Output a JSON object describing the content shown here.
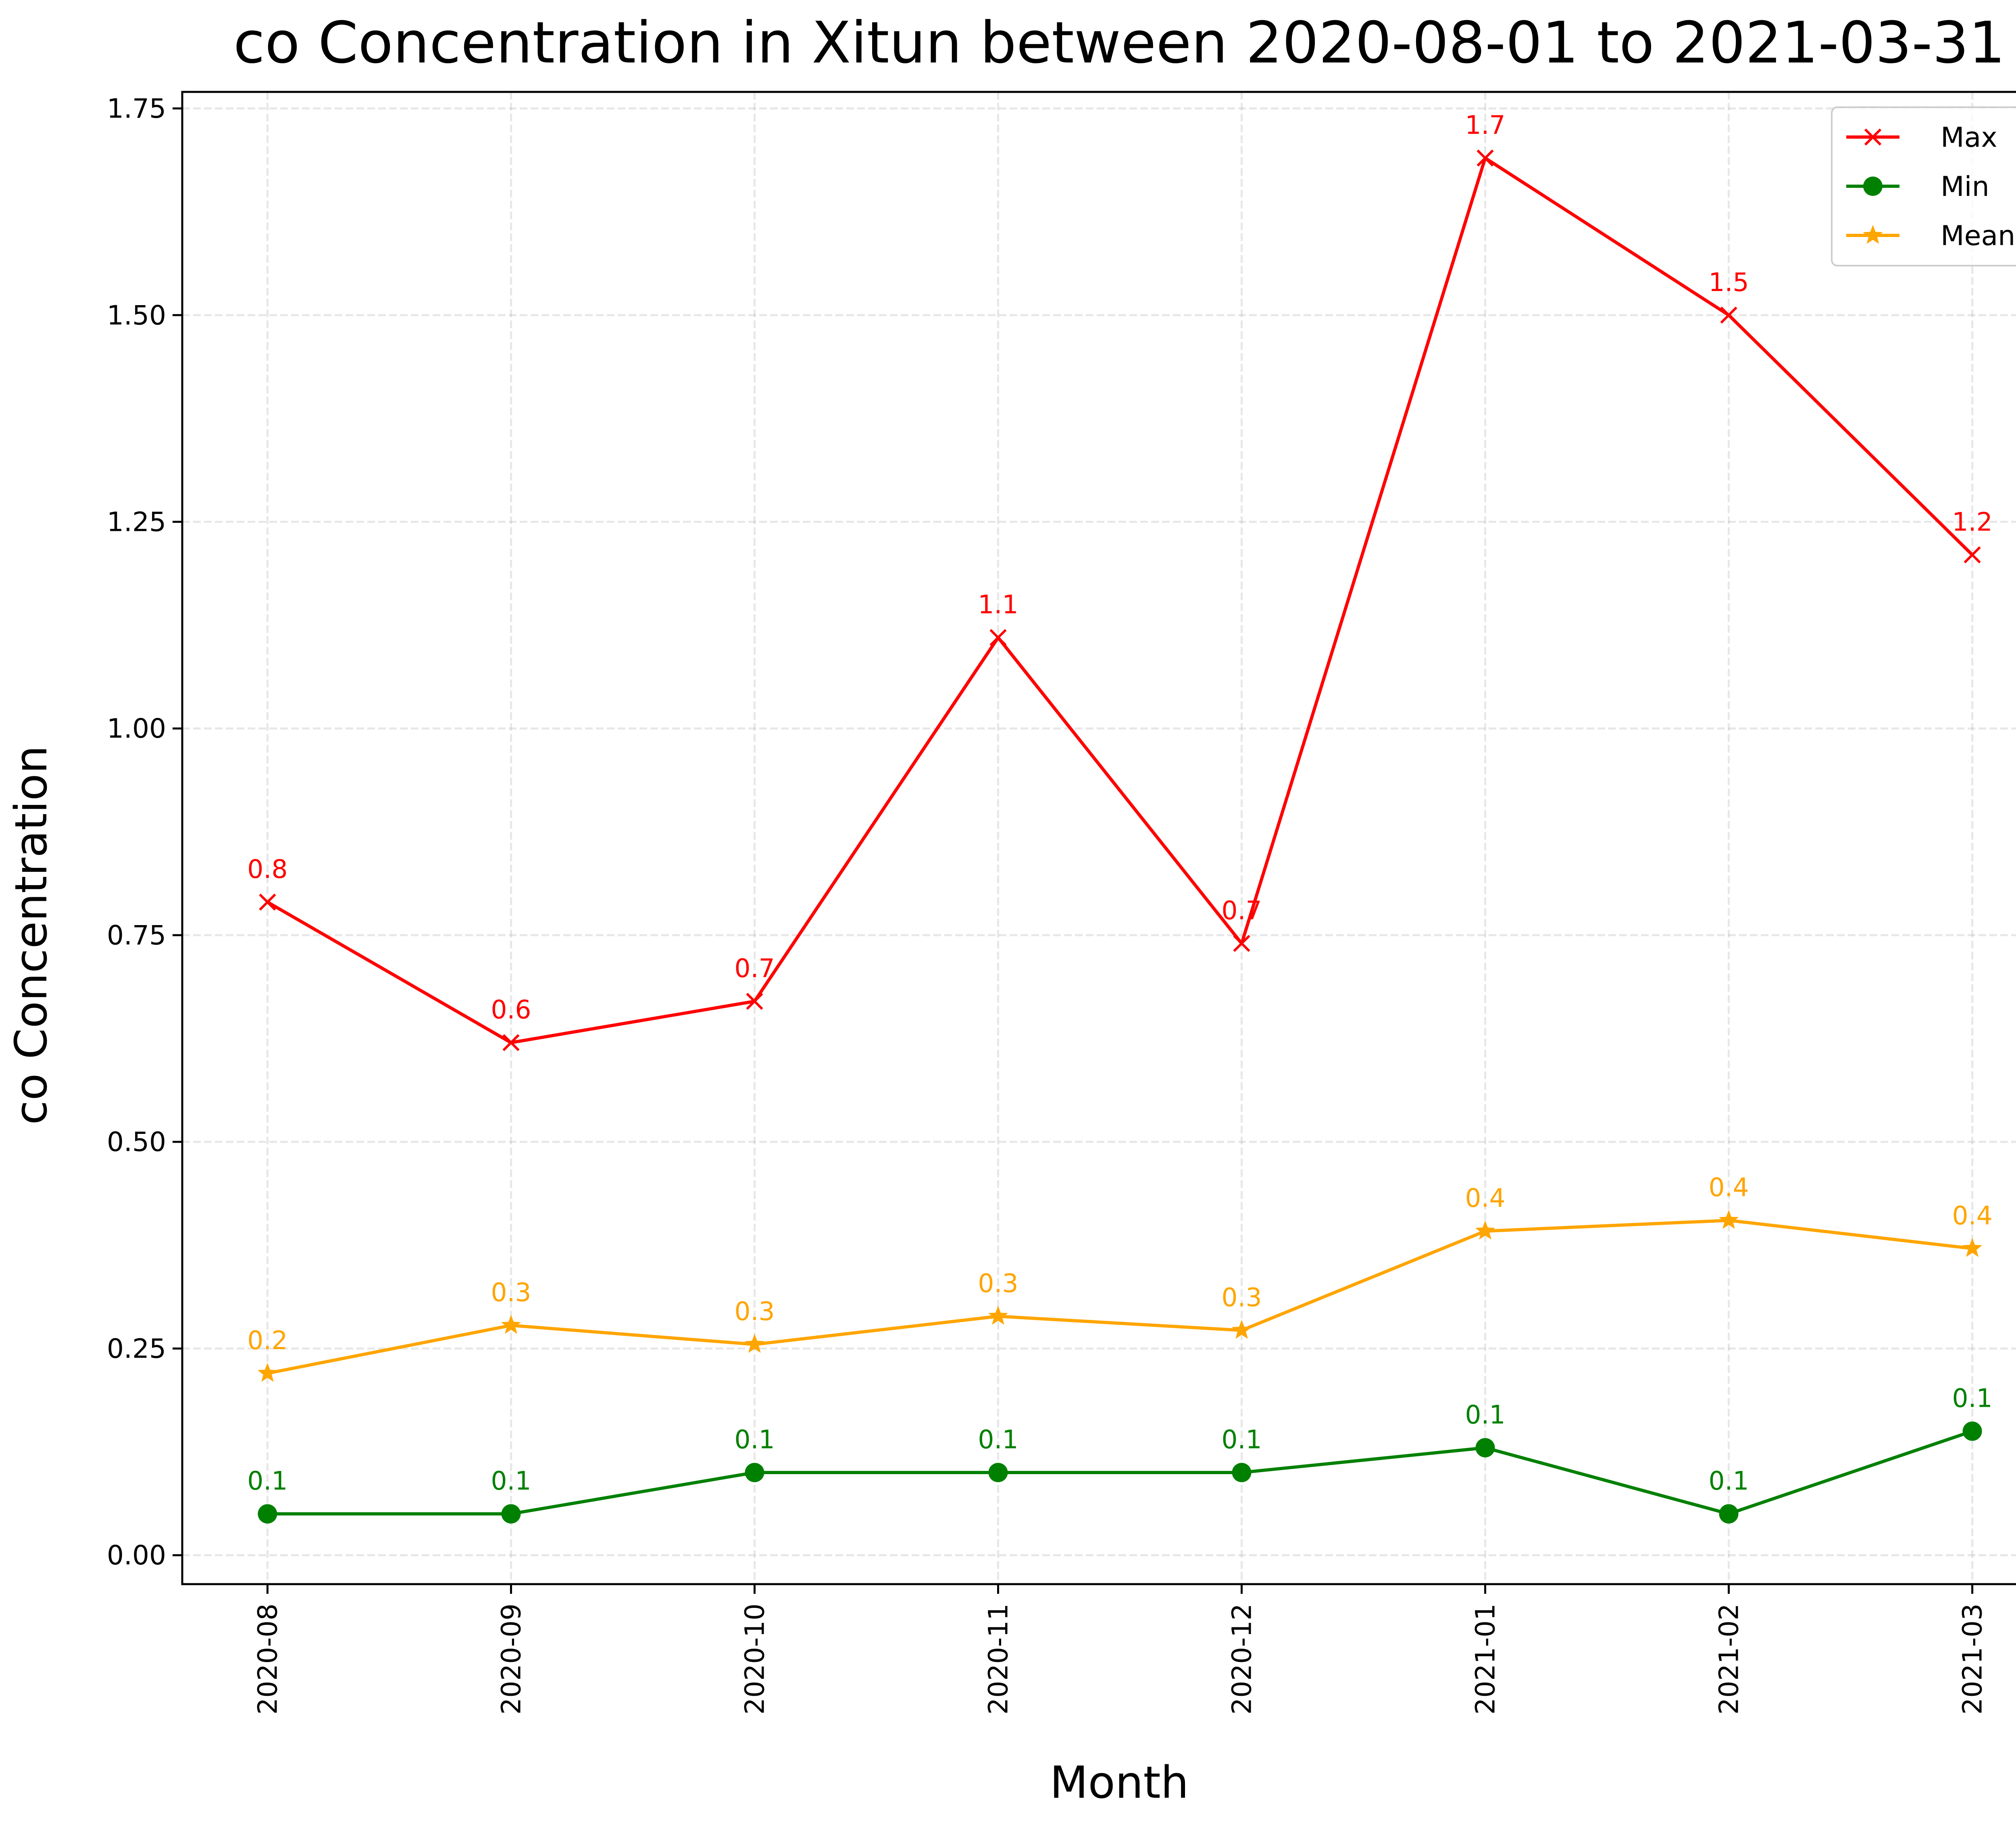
{
  "chart_data": {
    "type": "line",
    "title": "co Concentration in Xitun between 2020-08-01 to 2021-03-31",
    "xlabel": "Month",
    "ylabel": "co Concentration",
    "categories": [
      "2020-08",
      "2020-09",
      "2020-10",
      "2020-11",
      "2020-12",
      "2021-01",
      "2021-02",
      "2021-03"
    ],
    "ylim": [
      -0.035,
      1.77
    ],
    "yticks": [
      "0.00",
      "0.25",
      "0.50",
      "0.75",
      "1.00",
      "1.25",
      "1.50",
      "1.75"
    ],
    "grid": true,
    "legend_position": "top-right",
    "series": [
      {
        "name": "Max",
        "color": "#ff0000",
        "marker": "x",
        "values": [
          0.79,
          0.62,
          0.67,
          1.11,
          0.74,
          1.69,
          1.5,
          1.21
        ],
        "labels": [
          "0.8",
          "0.6",
          "0.7",
          "1.1",
          "0.7",
          "1.7",
          "1.5",
          "1.2"
        ]
      },
      {
        "name": "Min",
        "color": "#008000",
        "marker": "circle",
        "values": [
          0.05,
          0.05,
          0.1,
          0.1,
          0.1,
          0.13,
          0.05,
          0.15
        ],
        "labels": [
          "0.1",
          "0.1",
          "0.1",
          "0.1",
          "0.1",
          "0.1",
          "0.1",
          "0.1"
        ]
      },
      {
        "name": "Mean",
        "color": "#ffa500",
        "marker": "star",
        "values": [
          0.22,
          0.278,
          0.255,
          0.289,
          0.272,
          0.392,
          0.405,
          0.371
        ],
        "labels": [
          "0.2",
          "0.3",
          "0.3",
          "0.3",
          "0.3",
          "0.4",
          "0.4",
          "0.4"
        ]
      }
    ]
  }
}
